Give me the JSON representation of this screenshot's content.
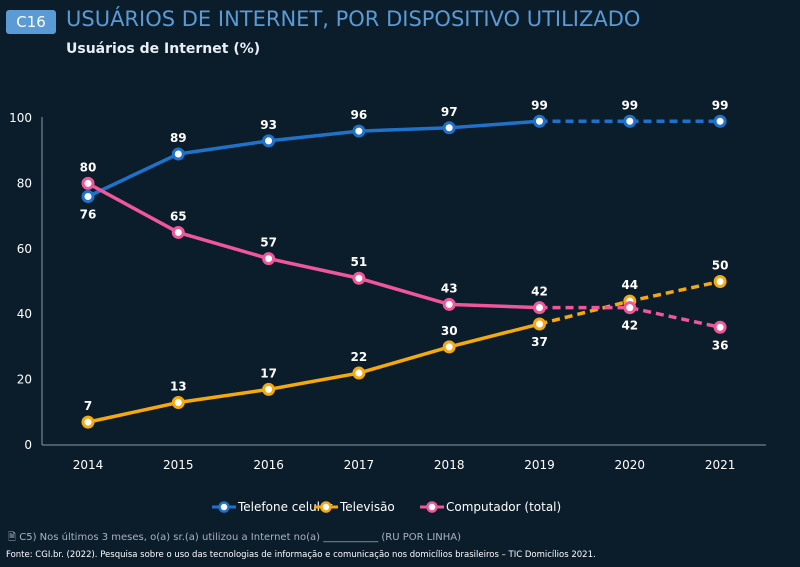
{
  "header": {
    "badge": "C16",
    "title": "USUÁRIOS DE INTERNET, POR DISPOSITIVO UTILIZADO",
    "subtitle": "Usuários de Internet (%)"
  },
  "chart_data": {
    "type": "line",
    "x": [
      "2014",
      "2015",
      "2016",
      "2017",
      "2018",
      "2019",
      "2020",
      "2021"
    ],
    "ylim": [
      0,
      100
    ],
    "yticks": [
      0,
      20,
      40,
      60,
      80,
      100
    ],
    "grid": false,
    "legend_placement": "bottom",
    "dashed_from": "2019",
    "series": [
      {
        "name": "Telefone celular",
        "color": "#1f72c9",
        "values": [
          76,
          89,
          93,
          96,
          97,
          99,
          99,
          99
        ]
      },
      {
        "name": "Televisão",
        "color": "#f5a90f",
        "values": [
          7,
          13,
          17,
          22,
          30,
          37,
          44,
          50
        ]
      },
      {
        "name": "Computador (total)",
        "color": "#f0569a",
        "values": [
          80,
          65,
          57,
          51,
          43,
          42,
          42,
          36
        ]
      }
    ]
  },
  "footer": {
    "note": "C5) Nos últimos 3 meses, o(a) sr.(a) utilizou a Internet no(a) ___________ (RU POR LINHA)",
    "note_icon": "document-icon",
    "source": "Fonte: CGI.br. (2022). Pesquisa sobre o uso das tecnologias de informação e comunicação nos domicílios brasileiros – TIC Domicílios 2021."
  }
}
